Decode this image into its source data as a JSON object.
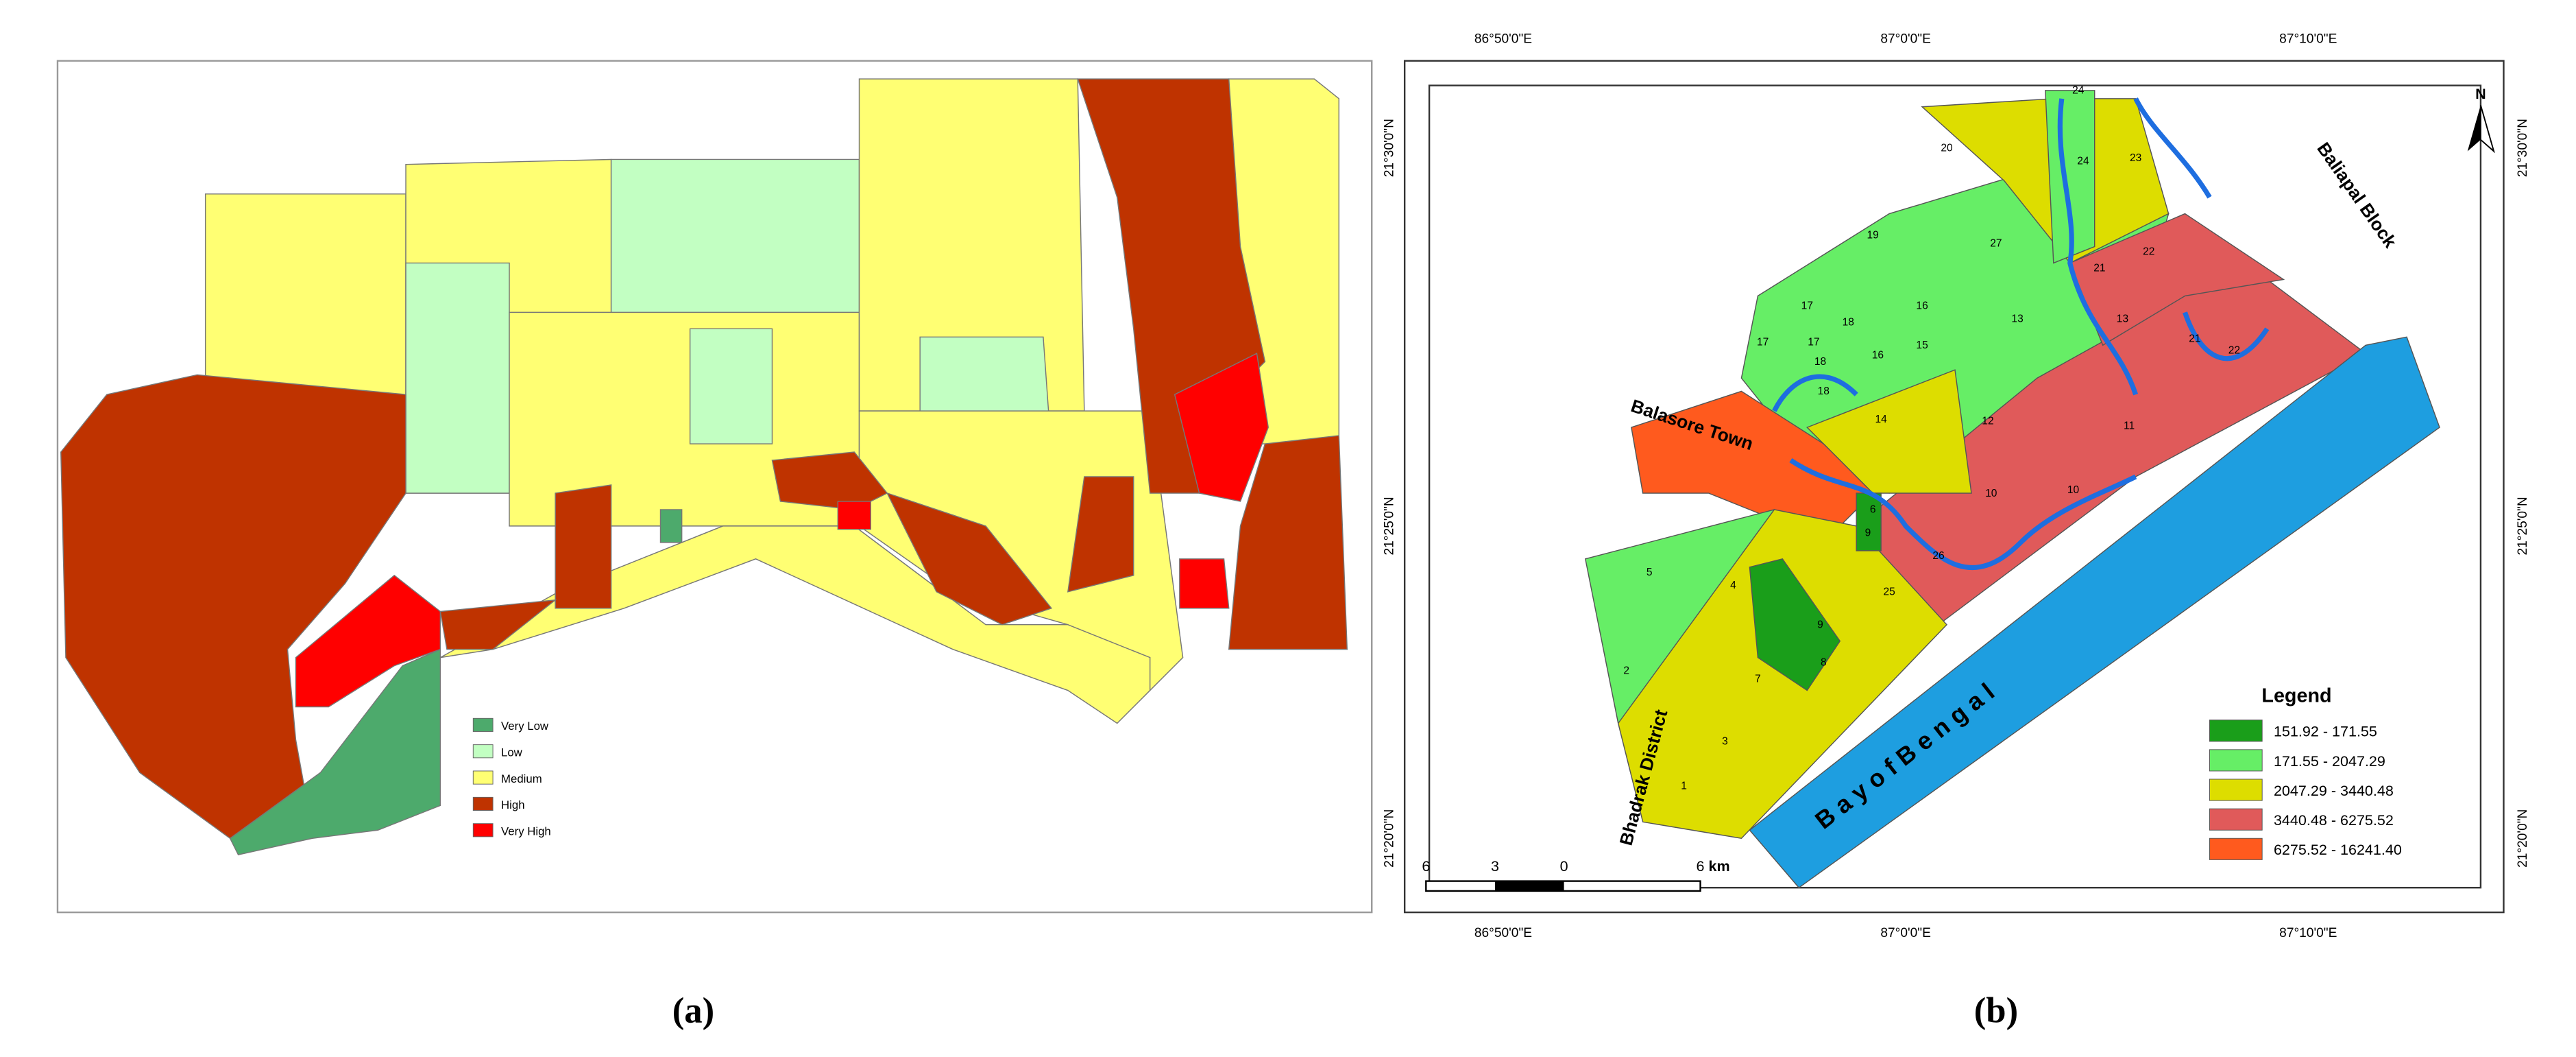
{
  "panel_a": {
    "legend": [
      {
        "label": "Very Low",
        "color": "#4daa6c"
      },
      {
        "label": "Low",
        "color": "#c2ffc2"
      },
      {
        "label": "Medium",
        "color": "#ffff73"
      },
      {
        "label": "High",
        "color": "#bf3300"
      },
      {
        "label": "Very High",
        "color": "#ff0000"
      }
    ]
  },
  "panel_b": {
    "longitude_labels": [
      "86°50'0\"E",
      "87°0'0\"E",
      "87°10'0\"E"
    ],
    "latitude_labels": [
      "21°30'0\"N",
      "21°25'0\"N",
      "21°20'0\"N"
    ],
    "legend_title": "Legend",
    "legend": [
      {
        "label": "151.92 - 171.55",
        "color": "#1a9e1a"
      },
      {
        "label": "171.55 - 2047.29",
        "color": "#66ee66"
      },
      {
        "label": "2047.29 - 3440.48",
        "color": "#dddd00"
      },
      {
        "label": "3440.48 - 6275.52",
        "color": "#e05a5a"
      },
      {
        "label": "6275.52 - 16241.40",
        "color": "#ff5a1e"
      }
    ],
    "balasore_town": "Balasore Town",
    "baliapal_block": "Baliapal Block",
    "bhadrak_district": "Bhadrak District",
    "bay_of_bengal": "B a y   o f   B e n g a l",
    "ward_numbers": [
      "20",
      "24",
      "24",
      "23",
      "19",
      "27",
      "21",
      "22",
      "17",
      "18",
      "16",
      "13",
      "13",
      "21",
      "22",
      "17",
      "17",
      "18",
      "15",
      "16",
      "18",
      "14",
      "12",
      "11",
      "10",
      "10",
      "26",
      "25",
      "5",
      "4",
      "9",
      "8",
      "2",
      "7",
      "3",
      "1",
      "9",
      "6"
    ],
    "scale_bar": [
      "6",
      "3",
      "0",
      "6"
    ],
    "scale_unit": "km",
    "north": "N"
  },
  "captions": [
    "(a)",
    "(b)"
  ]
}
